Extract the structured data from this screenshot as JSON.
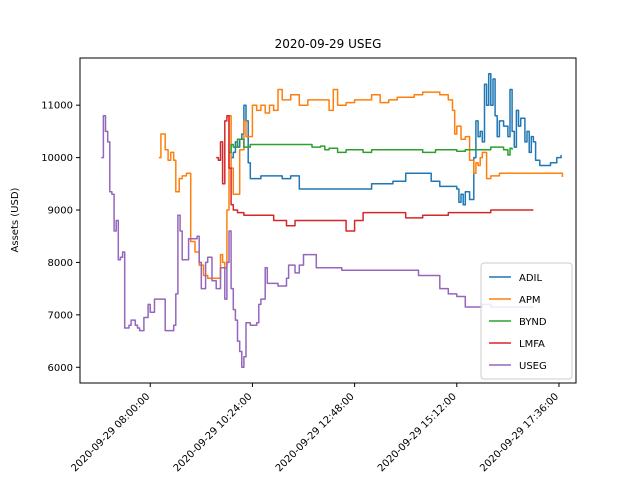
{
  "chart_data": {
    "type": "line",
    "title": "2020-09-29 USEG",
    "xlabel": "",
    "ylabel": "Assets (USD)",
    "x_unit": "time of day (hours)",
    "xlim": [
      6.35,
      18.0
    ],
    "ylim": [
      5700,
      11900
    ],
    "x_ticks": [
      {
        "value": 8.0,
        "label": "2020-09-29 08:00:00"
      },
      {
        "value": 10.4,
        "label": "2020-09-29 10:24:00"
      },
      {
        "value": 12.8,
        "label": "2020-09-29 12:48:00"
      },
      {
        "value": 15.2,
        "label": "2020-09-29 15:12:00"
      },
      {
        "value": 17.6,
        "label": "2020-09-29 17:36:00"
      }
    ],
    "y_ticks": [
      6000,
      7000,
      8000,
      9000,
      10000,
      11000
    ],
    "grid": false,
    "legend_position": "lower-right",
    "series": [
      {
        "name": "ADIL",
        "color": "#1f77b4",
        "points": [
          [
            9.9,
            10000
          ],
          [
            9.95,
            10100
          ],
          [
            10.0,
            10300
          ],
          [
            10.05,
            10200
          ],
          [
            10.1,
            10350
          ],
          [
            10.15,
            10450
          ],
          [
            10.2,
            11000
          ],
          [
            10.25,
            10700
          ],
          [
            10.3,
            9900
          ],
          [
            10.35,
            9600
          ],
          [
            10.45,
            9600
          ],
          [
            10.6,
            9650
          ],
          [
            10.9,
            9650
          ],
          [
            11.1,
            9600
          ],
          [
            11.3,
            9650
          ],
          [
            11.5,
            9400
          ],
          [
            12.0,
            9400
          ],
          [
            12.5,
            9400
          ],
          [
            13.0,
            9400
          ],
          [
            13.2,
            9500
          ],
          [
            13.5,
            9500
          ],
          [
            13.7,
            9550
          ],
          [
            14.0,
            9700
          ],
          [
            14.5,
            9700
          ],
          [
            14.6,
            9550
          ],
          [
            14.8,
            9450
          ],
          [
            15.1,
            9450
          ],
          [
            15.2,
            9400
          ],
          [
            15.25,
            9150
          ],
          [
            15.3,
            9300
          ],
          [
            15.35,
            9100
          ],
          [
            15.4,
            9350
          ],
          [
            15.5,
            9200
          ],
          [
            15.6,
            10000
          ],
          [
            15.65,
            10700
          ],
          [
            15.7,
            10400
          ],
          [
            15.75,
            10500
          ],
          [
            15.8,
            10300
          ],
          [
            15.85,
            11400
          ],
          [
            15.9,
            11000
          ],
          [
            15.95,
            11600
          ],
          [
            16.0,
            11000
          ],
          [
            16.05,
            11500
          ],
          [
            16.1,
            10800
          ],
          [
            16.15,
            10400
          ],
          [
            16.2,
            10700
          ],
          [
            16.3,
            10600
          ],
          [
            16.4,
            10400
          ],
          [
            16.45,
            11300
          ],
          [
            16.5,
            10500
          ],
          [
            16.55,
            10200
          ],
          [
            16.6,
            10900
          ],
          [
            16.65,
            10600
          ],
          [
            16.7,
            10750
          ],
          [
            16.8,
            10300
          ],
          [
            16.85,
            10500
          ],
          [
            16.9,
            10100
          ],
          [
            16.95,
            10400
          ],
          [
            17.0,
            10300
          ],
          [
            17.05,
            9950
          ],
          [
            17.15,
            9850
          ],
          [
            17.4,
            9900
          ],
          [
            17.55,
            10000
          ],
          [
            17.65,
            10050
          ]
        ]
      },
      {
        "name": "APM",
        "color": "#ff7f0e",
        "points": [
          [
            8.2,
            10000
          ],
          [
            8.25,
            10450
          ],
          [
            8.35,
            10150
          ],
          [
            8.42,
            9950
          ],
          [
            8.48,
            10100
          ],
          [
            8.55,
            9950
          ],
          [
            8.6,
            9350
          ],
          [
            8.68,
            9600
          ],
          [
            8.75,
            9650
          ],
          [
            8.85,
            9700
          ],
          [
            8.95,
            8400
          ],
          [
            9.05,
            8200
          ],
          [
            9.15,
            7950
          ],
          [
            9.25,
            7750
          ],
          [
            9.35,
            7700
          ],
          [
            9.5,
            7700
          ],
          [
            9.6,
            7700
          ],
          [
            9.65,
            8150
          ],
          [
            9.7,
            8000
          ],
          [
            9.75,
            7900
          ],
          [
            9.8,
            9000
          ],
          [
            9.85,
            10800
          ],
          [
            9.9,
            9800
          ],
          [
            9.95,
            9300
          ],
          [
            10.05,
            9300
          ],
          [
            10.1,
            10150
          ],
          [
            10.2,
            10700
          ],
          [
            10.25,
            10400
          ],
          [
            10.35,
            10400
          ],
          [
            10.4,
            11000
          ],
          [
            10.5,
            10900
          ],
          [
            10.6,
            11000
          ],
          [
            10.7,
            10850
          ],
          [
            10.8,
            11000
          ],
          [
            10.9,
            10900
          ],
          [
            11.0,
            11300
          ],
          [
            11.1,
            11100
          ],
          [
            11.3,
            11200
          ],
          [
            11.5,
            11000
          ],
          [
            11.7,
            11100
          ],
          [
            12.0,
            11100
          ],
          [
            12.2,
            10900
          ],
          [
            12.3,
            11300
          ],
          [
            12.4,
            11000
          ],
          [
            12.6,
            11050
          ],
          [
            12.8,
            11100
          ],
          [
            13.0,
            11100
          ],
          [
            13.2,
            11200
          ],
          [
            13.4,
            11050
          ],
          [
            13.6,
            11100
          ],
          [
            13.8,
            11150
          ],
          [
            14.0,
            11150
          ],
          [
            14.2,
            11200
          ],
          [
            14.4,
            11250
          ],
          [
            14.6,
            11250
          ],
          [
            14.8,
            11200
          ],
          [
            15.0,
            11100
          ],
          [
            15.1,
            10900
          ],
          [
            15.15,
            10450
          ],
          [
            15.2,
            10600
          ],
          [
            15.3,
            10350
          ],
          [
            15.4,
            10400
          ],
          [
            15.5,
            9950
          ],
          [
            15.6,
            9700
          ],
          [
            15.65,
            9900
          ],
          [
            15.7,
            9850
          ],
          [
            15.75,
            10000
          ],
          [
            15.8,
            10100
          ],
          [
            15.9,
            9600
          ],
          [
            16.0,
            9650
          ],
          [
            16.2,
            9700
          ],
          [
            16.5,
            9700
          ],
          [
            16.8,
            9700
          ],
          [
            17.2,
            9700
          ],
          [
            17.6,
            9700
          ],
          [
            17.68,
            9630
          ]
        ]
      },
      {
        "name": "BYND",
        "color": "#2ca02c",
        "points": [
          [
            9.85,
            10100
          ],
          [
            9.9,
            10250
          ],
          [
            9.95,
            10200
          ],
          [
            10.05,
            10350
          ],
          [
            10.2,
            10200
          ],
          [
            10.35,
            10250
          ],
          [
            10.6,
            10250
          ],
          [
            10.9,
            10250
          ],
          [
            11.2,
            10250
          ],
          [
            11.5,
            10250
          ],
          [
            11.8,
            10200
          ],
          [
            12.0,
            10220
          ],
          [
            12.1,
            10150
          ],
          [
            12.2,
            10180
          ],
          [
            12.4,
            10100
          ],
          [
            12.6,
            10150
          ],
          [
            12.8,
            10150
          ],
          [
            13.0,
            10100
          ],
          [
            13.2,
            10150
          ],
          [
            13.5,
            10150
          ],
          [
            13.8,
            10150
          ],
          [
            14.1,
            10150
          ],
          [
            14.4,
            10100
          ],
          [
            14.7,
            10150
          ],
          [
            15.0,
            10150
          ],
          [
            15.2,
            10120
          ],
          [
            15.4,
            10150
          ],
          [
            15.7,
            10150
          ],
          [
            16.0,
            10200
          ],
          [
            16.3,
            10150
          ],
          [
            16.4,
            10050
          ],
          [
            16.45,
            10180
          ],
          [
            16.5,
            10150
          ]
        ]
      },
      {
        "name": "LMFA",
        "color": "#d62728",
        "points": [
          [
            9.55,
            10000
          ],
          [
            9.6,
            9950
          ],
          [
            9.65,
            10300
          ],
          [
            9.7,
            9500
          ],
          [
            9.75,
            10700
          ],
          [
            9.8,
            10800
          ],
          [
            9.85,
            9800
          ],
          [
            9.9,
            9100
          ],
          [
            9.95,
            9000
          ],
          [
            10.05,
            8950
          ],
          [
            10.2,
            8900
          ],
          [
            10.5,
            8900
          ],
          [
            10.8,
            8900
          ],
          [
            10.9,
            8800
          ],
          [
            11.2,
            8700
          ],
          [
            11.4,
            8800
          ],
          [
            11.8,
            8800
          ],
          [
            12.2,
            8800
          ],
          [
            12.5,
            8800
          ],
          [
            12.6,
            8600
          ],
          [
            12.7,
            8600
          ],
          [
            12.8,
            8800
          ],
          [
            13.0,
            8950
          ],
          [
            13.4,
            8950
          ],
          [
            13.8,
            8950
          ],
          [
            14.0,
            8850
          ],
          [
            14.4,
            8900
          ],
          [
            14.7,
            8900
          ],
          [
            15.0,
            8950
          ],
          [
            15.5,
            8950
          ],
          [
            16.0,
            9000
          ],
          [
            16.5,
            9000
          ],
          [
            17.0,
            9000
          ]
        ]
      },
      {
        "name": "USEG",
        "color": "#9467bd",
        "points": [
          [
            6.85,
            10000
          ],
          [
            6.9,
            10800
          ],
          [
            6.95,
            10500
          ],
          [
            7.0,
            10300
          ],
          [
            7.05,
            9350
          ],
          [
            7.1,
            9300
          ],
          [
            7.15,
            8600
          ],
          [
            7.2,
            8800
          ],
          [
            7.25,
            8050
          ],
          [
            7.3,
            8100
          ],
          [
            7.35,
            8200
          ],
          [
            7.4,
            6750
          ],
          [
            7.5,
            6800
          ],
          [
            7.55,
            6900
          ],
          [
            7.6,
            6900
          ],
          [
            7.65,
            6800
          ],
          [
            7.7,
            6750
          ],
          [
            7.75,
            6700
          ],
          [
            7.8,
            6700
          ],
          [
            7.85,
            6950
          ],
          [
            7.9,
            6950
          ],
          [
            7.95,
            7200
          ],
          [
            8.0,
            7050
          ],
          [
            8.1,
            7300
          ],
          [
            8.2,
            7300
          ],
          [
            8.3,
            7300
          ],
          [
            8.35,
            6700
          ],
          [
            8.45,
            6700
          ],
          [
            8.55,
            6800
          ],
          [
            8.6,
            7400
          ],
          [
            8.65,
            8900
          ],
          [
            8.7,
            8600
          ],
          [
            8.75,
            8050
          ],
          [
            8.8,
            8050
          ],
          [
            8.9,
            8450
          ],
          [
            9.0,
            8450
          ],
          [
            9.1,
            8500
          ],
          [
            9.15,
            8000
          ],
          [
            9.2,
            7500
          ],
          [
            9.3,
            8000
          ],
          [
            9.35,
            8100
          ],
          [
            9.45,
            7650
          ],
          [
            9.55,
            7500
          ],
          [
            9.65,
            7900
          ],
          [
            9.75,
            7300
          ],
          [
            9.8,
            8000
          ],
          [
            9.85,
            8600
          ],
          [
            9.9,
            7500
          ],
          [
            9.95,
            7100
          ],
          [
            10.0,
            6900
          ],
          [
            10.05,
            6500
          ],
          [
            10.1,
            6300
          ],
          [
            10.15,
            6000
          ],
          [
            10.2,
            6200
          ],
          [
            10.25,
            6850
          ],
          [
            10.35,
            6800
          ],
          [
            10.5,
            6850
          ],
          [
            10.55,
            7200
          ],
          [
            10.6,
            7300
          ],
          [
            10.65,
            7300
          ],
          [
            10.7,
            7900
          ],
          [
            10.75,
            7600
          ],
          [
            11.0,
            7550
          ],
          [
            11.2,
            7700
          ],
          [
            11.25,
            7950
          ],
          [
            11.4,
            7800
          ],
          [
            11.5,
            7950
          ],
          [
            11.6,
            8150
          ],
          [
            11.8,
            8150
          ],
          [
            11.9,
            7900
          ],
          [
            12.2,
            7900
          ],
          [
            12.5,
            7850
          ],
          [
            12.8,
            7850
          ],
          [
            13.2,
            7850
          ],
          [
            13.6,
            7850
          ],
          [
            14.0,
            7850
          ],
          [
            14.3,
            7750
          ],
          [
            14.6,
            7750
          ],
          [
            14.8,
            7500
          ],
          [
            15.0,
            7400
          ],
          [
            15.2,
            7350
          ],
          [
            15.4,
            7150
          ],
          [
            15.6,
            7150
          ],
          [
            15.8,
            7200
          ],
          [
            16.0,
            7150
          ],
          [
            16.3,
            7150
          ],
          [
            16.6,
            7150
          ],
          [
            17.0,
            7150
          ]
        ]
      }
    ]
  }
}
